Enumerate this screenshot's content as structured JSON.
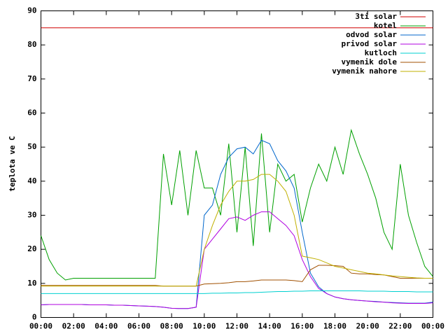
{
  "chart_data": {
    "type": "line",
    "y_label": "teplota ve C",
    "x": [
      0,
      0.5,
      1,
      1.5,
      2,
      2.5,
      3,
      3.5,
      4,
      4.5,
      5,
      5.5,
      6,
      6.5,
      7,
      7.5,
      8,
      8.5,
      9,
      9.5,
      10,
      10.5,
      11,
      11.5,
      12,
      12.5,
      13,
      13.5,
      14,
      14.5,
      15,
      15.5,
      16,
      16.5,
      17,
      17.5,
      18,
      18.5,
      19,
      19.5,
      20,
      20.5,
      21,
      21.5,
      22,
      22.5,
      23,
      23.5,
      24
    ],
    "xlim": [
      0,
      24
    ],
    "xticks": [
      {
        "value": 0,
        "label": "00:00"
      },
      {
        "value": 2,
        "label": "02:00"
      },
      {
        "value": 4,
        "label": "04:00"
      },
      {
        "value": 6,
        "label": "06:00"
      },
      {
        "value": 8,
        "label": "08:00"
      },
      {
        "value": 10,
        "label": "10:00"
      },
      {
        "value": 12,
        "label": "12:00"
      },
      {
        "value": 14,
        "label": "14:00"
      },
      {
        "value": 16,
        "label": "16:00"
      },
      {
        "value": 18,
        "label": "18:00"
      },
      {
        "value": 20,
        "label": "20:00"
      },
      {
        "value": 22,
        "label": "22:00"
      },
      {
        "value": 24,
        "label": "00:00"
      }
    ],
    "ylim": [
      0,
      90
    ],
    "yticks": [
      0,
      10,
      20,
      30,
      40,
      50,
      60,
      70,
      80,
      90
    ],
    "grid": false,
    "legend": "top-right",
    "series": [
      {
        "name": "3ti solar",
        "color": "#d00000",
        "values": [
          85,
          85,
          85,
          85,
          85,
          85,
          85,
          85,
          85,
          85,
          85,
          85,
          85,
          85,
          85,
          85,
          85,
          85,
          85,
          85,
          85,
          85,
          85,
          85,
          85,
          85,
          85,
          85,
          85,
          85,
          85,
          85,
          85,
          85,
          85,
          85,
          85,
          85,
          85,
          85,
          85,
          85,
          85,
          85,
          85,
          85,
          85,
          85,
          85
        ]
      },
      {
        "name": "kotel",
        "color": "#00a000",
        "values": [
          24,
          17,
          13,
          11,
          11.5,
          11.5,
          11.5,
          11.5,
          11.5,
          11.5,
          11.5,
          11.5,
          11.5,
          11.5,
          11.5,
          48,
          33,
          49,
          30,
          49,
          38,
          38,
          30,
          51,
          25,
          50,
          21,
          54,
          25,
          45,
          40,
          42,
          28,
          38,
          45,
          40,
          50,
          42,
          55,
          48,
          42,
          35,
          25,
          20,
          45,
          30,
          22,
          15,
          12
        ]
      },
      {
        "name": "odvod solar",
        "color": "#0066cc",
        "values": [
          3.7,
          3.8,
          3.8,
          3.8,
          3.8,
          3.8,
          3.7,
          3.7,
          3.7,
          3.6,
          3.6,
          3.5,
          3.4,
          3.3,
          3.2,
          3.0,
          2.7,
          2.6,
          2.6,
          3.0,
          30,
          33,
          42,
          47,
          49.5,
          50,
          48,
          52,
          51,
          46,
          43,
          38,
          25,
          13,
          9,
          7,
          6,
          5.5,
          5.2,
          5,
          4.8,
          4.7,
          4.5,
          4.4,
          4.3,
          4.2,
          4.2,
          4.2,
          4.5
        ]
      },
      {
        "name": "privod solar",
        "color": "#b000e0",
        "values": [
          3.7,
          3.8,
          3.8,
          3.8,
          3.8,
          3.8,
          3.7,
          3.7,
          3.7,
          3.6,
          3.6,
          3.5,
          3.4,
          3.3,
          3.2,
          3.0,
          2.7,
          2.6,
          2.6,
          3.0,
          20,
          23,
          26,
          29,
          29.5,
          28.5,
          30,
          31,
          31,
          29,
          27,
          24,
          17,
          12,
          8.5,
          7,
          6,
          5.5,
          5.2,
          5,
          4.8,
          4.6,
          4.5,
          4.3,
          4.2,
          4.1,
          4.1,
          4.1,
          4.3
        ]
      },
      {
        "name": "kutloch",
        "color": "#00d0d0",
        "values": [
          7,
          7,
          7,
          7,
          7,
          7,
          7,
          7,
          7,
          7,
          7,
          7,
          7,
          7,
          7,
          7,
          7,
          7,
          7,
          7,
          7,
          7.1,
          7.1,
          7.2,
          7.2,
          7.3,
          7.3,
          7.4,
          7.5,
          7.6,
          7.6,
          7.7,
          7.7,
          7.8,
          7.8,
          7.8,
          7.8,
          7.8,
          7.8,
          7.8,
          7.7,
          7.7,
          7.7,
          7.6,
          7.6,
          7.6,
          7.5,
          7.5,
          7.5
        ]
      },
      {
        "name": "vymenik dole",
        "color": "#a05000",
        "values": [
          9.4,
          9.4,
          9.4,
          9.4,
          9.4,
          9.4,
          9.4,
          9.4,
          9.4,
          9.4,
          9.4,
          9.4,
          9.4,
          9.4,
          9.4,
          9.2,
          9.2,
          9.2,
          9.2,
          9.2,
          9.8,
          9.9,
          10,
          10.2,
          10.5,
          10.5,
          10.7,
          11,
          11,
          11,
          11,
          10.8,
          10.5,
          14,
          15.3,
          15.3,
          15.2,
          15,
          13,
          12.8,
          12.8,
          12.6,
          12.5,
          12,
          11.5,
          11.5,
          11.5,
          11.5,
          11.5
        ]
      },
      {
        "name": "vymenik nahore",
        "color": "#c0b000",
        "values": [
          9.2,
          9.2,
          9.2,
          9.2,
          9.2,
          9.2,
          9.2,
          9.2,
          9.2,
          9.2,
          9.2,
          9.2,
          9.2,
          9.2,
          9.2,
          9.2,
          9.2,
          9.2,
          9.2,
          9.2,
          20,
          27,
          33,
          37,
          40,
          40,
          40.5,
          42,
          42,
          40,
          37,
          30,
          18,
          17.5,
          17,
          16,
          15,
          14.5,
          14,
          13.5,
          13,
          12.8,
          12.5,
          12.2,
          12,
          11.8,
          11.6,
          11.5,
          11.5
        ]
      }
    ]
  }
}
